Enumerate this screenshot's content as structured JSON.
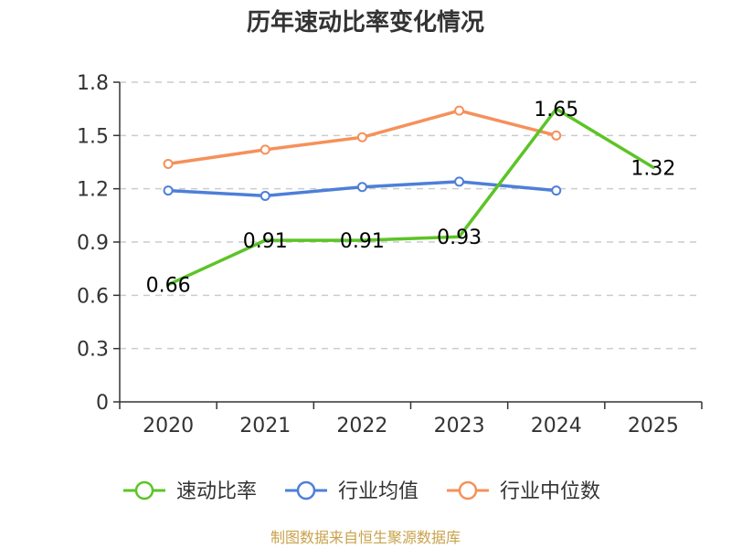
{
  "chart_data": {
    "type": "line",
    "title": "历年速动比率变化情况",
    "categories": [
      "2020",
      "2021",
      "2022",
      "2023",
      "2024",
      "2025"
    ],
    "ylim": [
      0,
      1.8
    ],
    "yticks": [
      "0",
      "0.3",
      "0.6",
      "0.9",
      "1.2",
      "1.5",
      "1.8"
    ],
    "grid": true,
    "legend_position": "bottom",
    "series": [
      {
        "name": "速动比率",
        "color": "#5cc426",
        "values": [
          0.66,
          0.91,
          0.91,
          0.93,
          1.65,
          1.32
        ],
        "labels": [
          "0.66",
          "0.91",
          "0.91",
          "0.93",
          "1.65",
          "1.32"
        ],
        "show_markers": false,
        "show_labels": true
      },
      {
        "name": "行业均值",
        "color": "#4e7fd8",
        "values": [
          1.19,
          1.16,
          1.21,
          1.24,
          1.19,
          null
        ],
        "show_markers": true,
        "show_labels": false
      },
      {
        "name": "行业中位数",
        "color": "#f5915a",
        "values": [
          1.34,
          1.42,
          1.49,
          1.64,
          1.5,
          null
        ],
        "show_markers": true,
        "show_labels": false
      }
    ],
    "source": "制图数据来自恒生聚源数据库"
  }
}
